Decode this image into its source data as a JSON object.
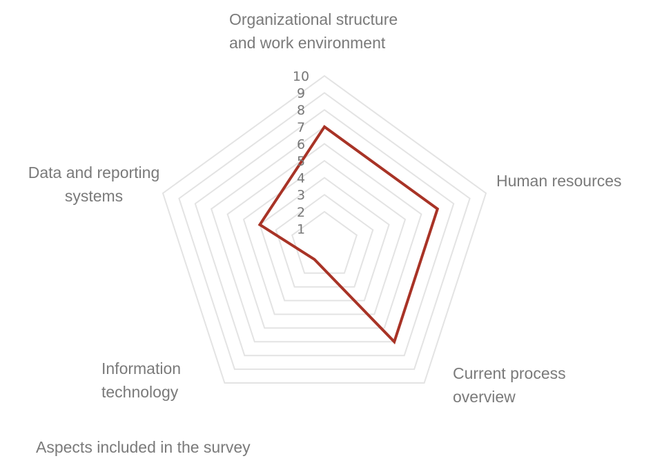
{
  "chart_data": {
    "type": "radar",
    "categories": [
      "Organizational structure and work environment",
      "Human resources",
      "Current process overview",
      "Information technology",
      "Data and reporting systems"
    ],
    "category_lines": [
      [
        "Organizational structure",
        "and work environment"
      ],
      [
        "Human resources"
      ],
      [
        "Current process",
        "overview"
      ],
      [
        "Information",
        "technology"
      ],
      [
        "Data and reporting",
        "systems"
      ]
    ],
    "series": [
      {
        "values": [
          7,
          7,
          7,
          1,
          4
        ],
        "color": "#a83326"
      }
    ],
    "rmax": 10,
    "rings": [
      2,
      3,
      4,
      5,
      6,
      7,
      8,
      9,
      10
    ],
    "ticks": [
      "1",
      "2",
      "3",
      "4",
      "5",
      "6",
      "7",
      "8",
      "9",
      "10"
    ],
    "grid_color": "#e3e3e3",
    "caption": "Aspects included in the survey"
  }
}
